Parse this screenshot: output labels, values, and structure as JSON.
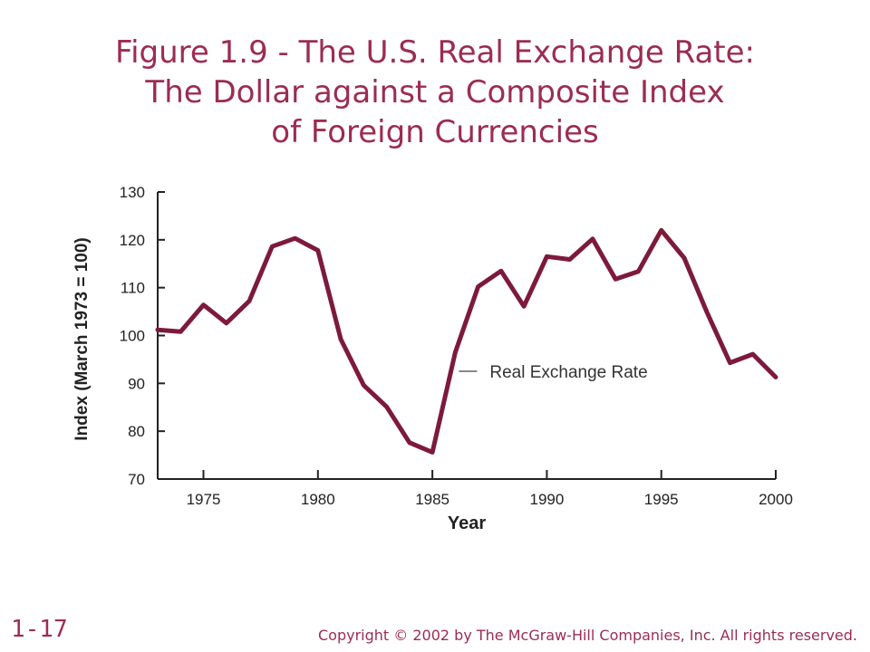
{
  "slide": {
    "title_lines": [
      "Figure 1.9 - The U.S. Real Exchange Rate:",
      "The Dollar against a Composite Index",
      "of Foreign Currencies"
    ],
    "number": "1-17",
    "copyright": "Copyright © 2002 by The McGraw-Hill Companies, Inc.  All rights reserved."
  },
  "colors": {
    "title": "#9c2c52",
    "line": "#7d1a3a",
    "axis": "#222222"
  },
  "chart_data": {
    "type": "line",
    "xlabel": "Year",
    "ylabel": "Index (March 1973 = 100)",
    "xlim": [
      1973,
      2000
    ],
    "ylim": [
      70,
      130
    ],
    "xticks": [
      1975,
      1980,
      1985,
      1990,
      1995,
      2000
    ],
    "yticks": [
      70,
      80,
      90,
      100,
      110,
      120,
      130
    ],
    "series": [
      {
        "name": "Real Exchange Rate",
        "x": [
          1973,
          1974,
          1975,
          1976,
          1977,
          1978,
          1979,
          1980,
          1981,
          1982,
          1983,
          1984,
          1985,
          1986,
          1987,
          1988,
          1989,
          1990,
          1991,
          1992,
          1993,
          1994,
          1995,
          1996,
          1997,
          1998,
          1999,
          2000
        ],
        "values": [
          101.2,
          100.8,
          106.4,
          102.6,
          107.2,
          118.6,
          120.3,
          117.8,
          99.2,
          89.6,
          85.1,
          77.6,
          75.6,
          96.5,
          110.2,
          113.5,
          106.1,
          116.5,
          115.9,
          120.2,
          111.8,
          113.4,
          122.0,
          116.2,
          104.8,
          94.3,
          96.1,
          91.3
        ]
      }
    ],
    "annotations": [
      {
        "text": "Real Exchange Rate"
      }
    ]
  }
}
